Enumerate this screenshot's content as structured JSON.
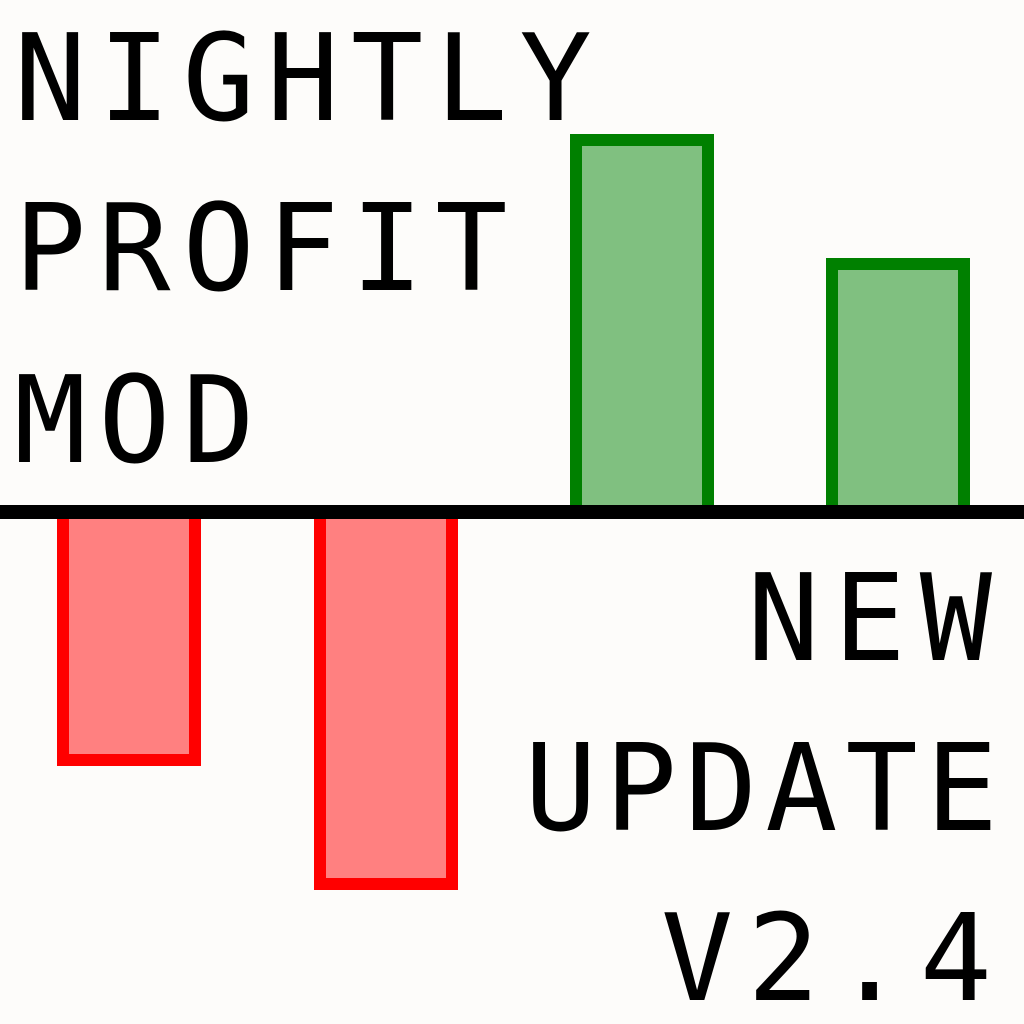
{
  "title": {
    "line1": "NIGHTLY",
    "line2": "PROFIT",
    "line3": "MOD"
  },
  "subtitle": {
    "line1": "NEW",
    "line2": "UPDATE",
    "line3": "V2.4"
  },
  "colors": {
    "background": "#fdfcfa",
    "positive_stroke": "#008000",
    "positive_fill": "#80c080",
    "negative_stroke": "#ff0000",
    "negative_fill": "#ff8080",
    "baseline": "#000000"
  },
  "chart_data": {
    "type": "bar",
    "categories": [
      "",
      "",
      "",
      ""
    ],
    "values": [
      -2,
      -3,
      3,
      2
    ],
    "title": "",
    "xlabel": "",
    "ylabel": "",
    "ylim": [
      -4,
      4
    ],
    "grid": false
  }
}
